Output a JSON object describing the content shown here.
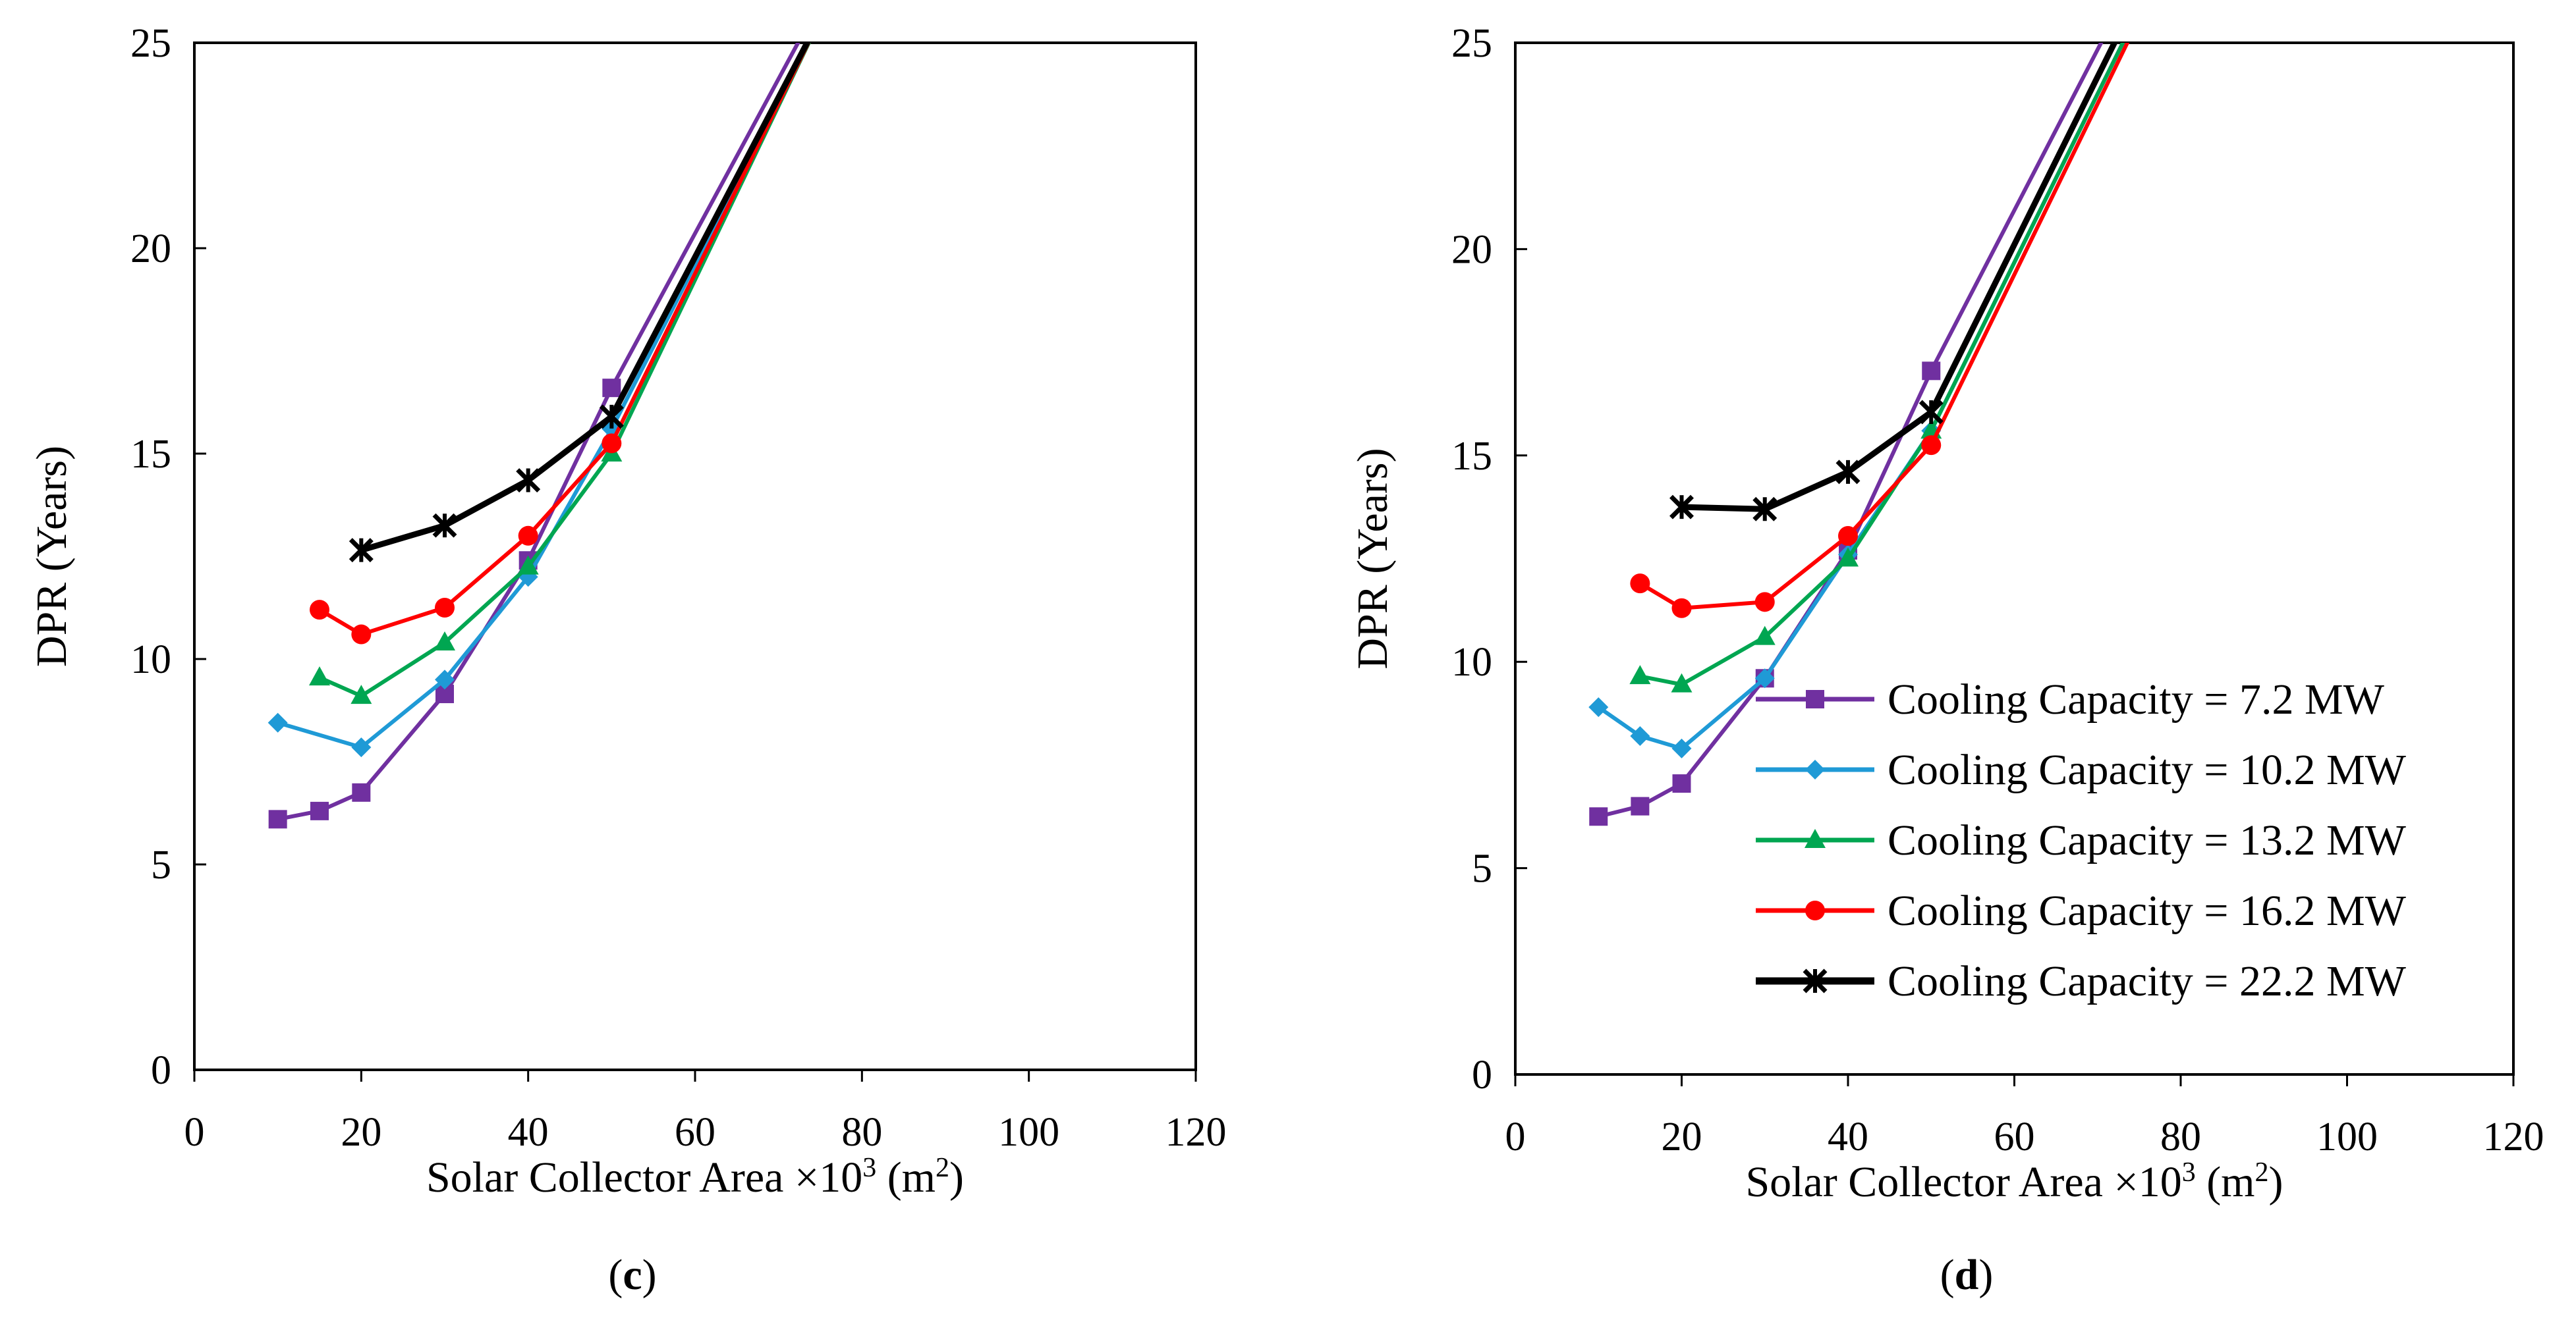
{
  "chart_data": [
    {
      "panel": "(c)",
      "panel_letter": "c",
      "type": "line",
      "xlabel": "Solar Collector Area ×10",
      "xlabel_sup": "3",
      "xlabel_unit_pre": " (m",
      "xlabel_unit_sup": "2",
      "xlabel_unit_post": ")",
      "ylabel": "DPR (Years)",
      "xlim": [
        0,
        120
      ],
      "ylim": [
        0,
        25
      ],
      "xticks": [
        0,
        20,
        40,
        60,
        80,
        100,
        120
      ],
      "yticks": [
        0,
        5,
        10,
        15,
        20,
        25
      ],
      "legend": false,
      "series": [
        {
          "name": "Cooling Capacity = 7.2 MW",
          "color": "#7030a0",
          "marker": "square",
          "points": [
            [
              10,
              6.1
            ],
            [
              15,
              6.3
            ],
            [
              20,
              6.75
            ],
            [
              30,
              9.15
            ],
            [
              40,
              12.4
            ],
            [
              50,
              16.6
            ],
            [
              75,
              26.0
            ]
          ]
        },
        {
          "name": "Cooling Capacity = 10.2 MW",
          "color": "#1f9ad6",
          "marker": "diamond",
          "points": [
            [
              10,
              8.45
            ],
            [
              20,
              7.85
            ],
            [
              30,
              9.5
            ],
            [
              40,
              12.0
            ],
            [
              50,
              15.6
            ],
            [
              76,
              26.0
            ]
          ]
        },
        {
          "name": "Cooling Capacity = 13.2 MW",
          "color": "#00a651",
          "marker": "triangle",
          "points": [
            [
              15,
              9.55
            ],
            [
              20,
              9.1
            ],
            [
              30,
              10.4
            ],
            [
              40,
              12.25
            ],
            [
              50,
              15.0
            ],
            [
              76,
              26.0
            ]
          ]
        },
        {
          "name": "Cooling Capacity = 16.2 MW",
          "color": "#ff0000",
          "marker": "circle",
          "points": [
            [
              15,
              11.2
            ],
            [
              20,
              10.6
            ],
            [
              30,
              11.25
            ],
            [
              40,
              13.0
            ],
            [
              50,
              15.25
            ],
            [
              76,
              26.0
            ]
          ]
        },
        {
          "name": "Cooling Capacity = 22.2 MW",
          "color": "#000000",
          "marker": "star",
          "points": [
            [
              20,
              12.65
            ],
            [
              30,
              13.25
            ],
            [
              40,
              14.35
            ],
            [
              50,
              15.9
            ],
            [
              76,
              26.0
            ]
          ]
        }
      ]
    },
    {
      "panel": "(d)",
      "panel_letter": "d",
      "type": "line",
      "xlabel": "Solar Collector Area ×10",
      "xlabel_sup": "3",
      "xlabel_unit_pre": " (m",
      "xlabel_unit_sup": "2",
      "xlabel_unit_post": ")",
      "ylabel": "DPR (Years)",
      "xlim": [
        0,
        120
      ],
      "ylim": [
        0,
        25
      ],
      "xticks": [
        0,
        20,
        40,
        60,
        80,
        100,
        120
      ],
      "yticks": [
        0,
        5,
        10,
        15,
        20,
        25
      ],
      "legend": true,
      "legend_position": "lower-right",
      "series": [
        {
          "name": "Cooling Capacity = 7.2 MW",
          "color": "#7030a0",
          "marker": "square",
          "points": [
            [
              10,
              6.25
            ],
            [
              15,
              6.5
            ],
            [
              20,
              7.05
            ],
            [
              30,
              9.6
            ],
            [
              40,
              12.7
            ],
            [
              50,
              17.05
            ],
            [
              73,
              26.0
            ]
          ]
        },
        {
          "name": "Cooling Capacity = 10.2 MW",
          "color": "#1f9ad6",
          "marker": "diamond",
          "points": [
            [
              10,
              8.9
            ],
            [
              15,
              8.2
            ],
            [
              20,
              7.9
            ],
            [
              30,
              9.6
            ],
            [
              40,
              12.6
            ],
            [
              50,
              15.6
            ],
            [
              75.5,
              26.0
            ]
          ]
        },
        {
          "name": "Cooling Capacity = 13.2 MW",
          "color": "#00a651",
          "marker": "triangle",
          "points": [
            [
              15,
              9.65
            ],
            [
              20,
              9.45
            ],
            [
              30,
              10.6
            ],
            [
              40,
              12.5
            ],
            [
              50,
              15.6
            ],
            [
              75.5,
              26.0
            ]
          ]
        },
        {
          "name": "Cooling Capacity = 16.2 MW",
          "color": "#ff0000",
          "marker": "circle",
          "points": [
            [
              15,
              11.9
            ],
            [
              20,
              11.3
            ],
            [
              30,
              11.45
            ],
            [
              40,
              13.05
            ],
            [
              50,
              15.25
            ],
            [
              76,
              26.0
            ]
          ]
        },
        {
          "name": "Cooling Capacity = 22.2 MW",
          "color": "#000000",
          "marker": "star",
          "points": [
            [
              20,
              13.75
            ],
            [
              30,
              13.7
            ],
            [
              40,
              14.6
            ],
            [
              50,
              16.05
            ],
            [
              74.5,
              26.0
            ]
          ]
        }
      ]
    }
  ]
}
